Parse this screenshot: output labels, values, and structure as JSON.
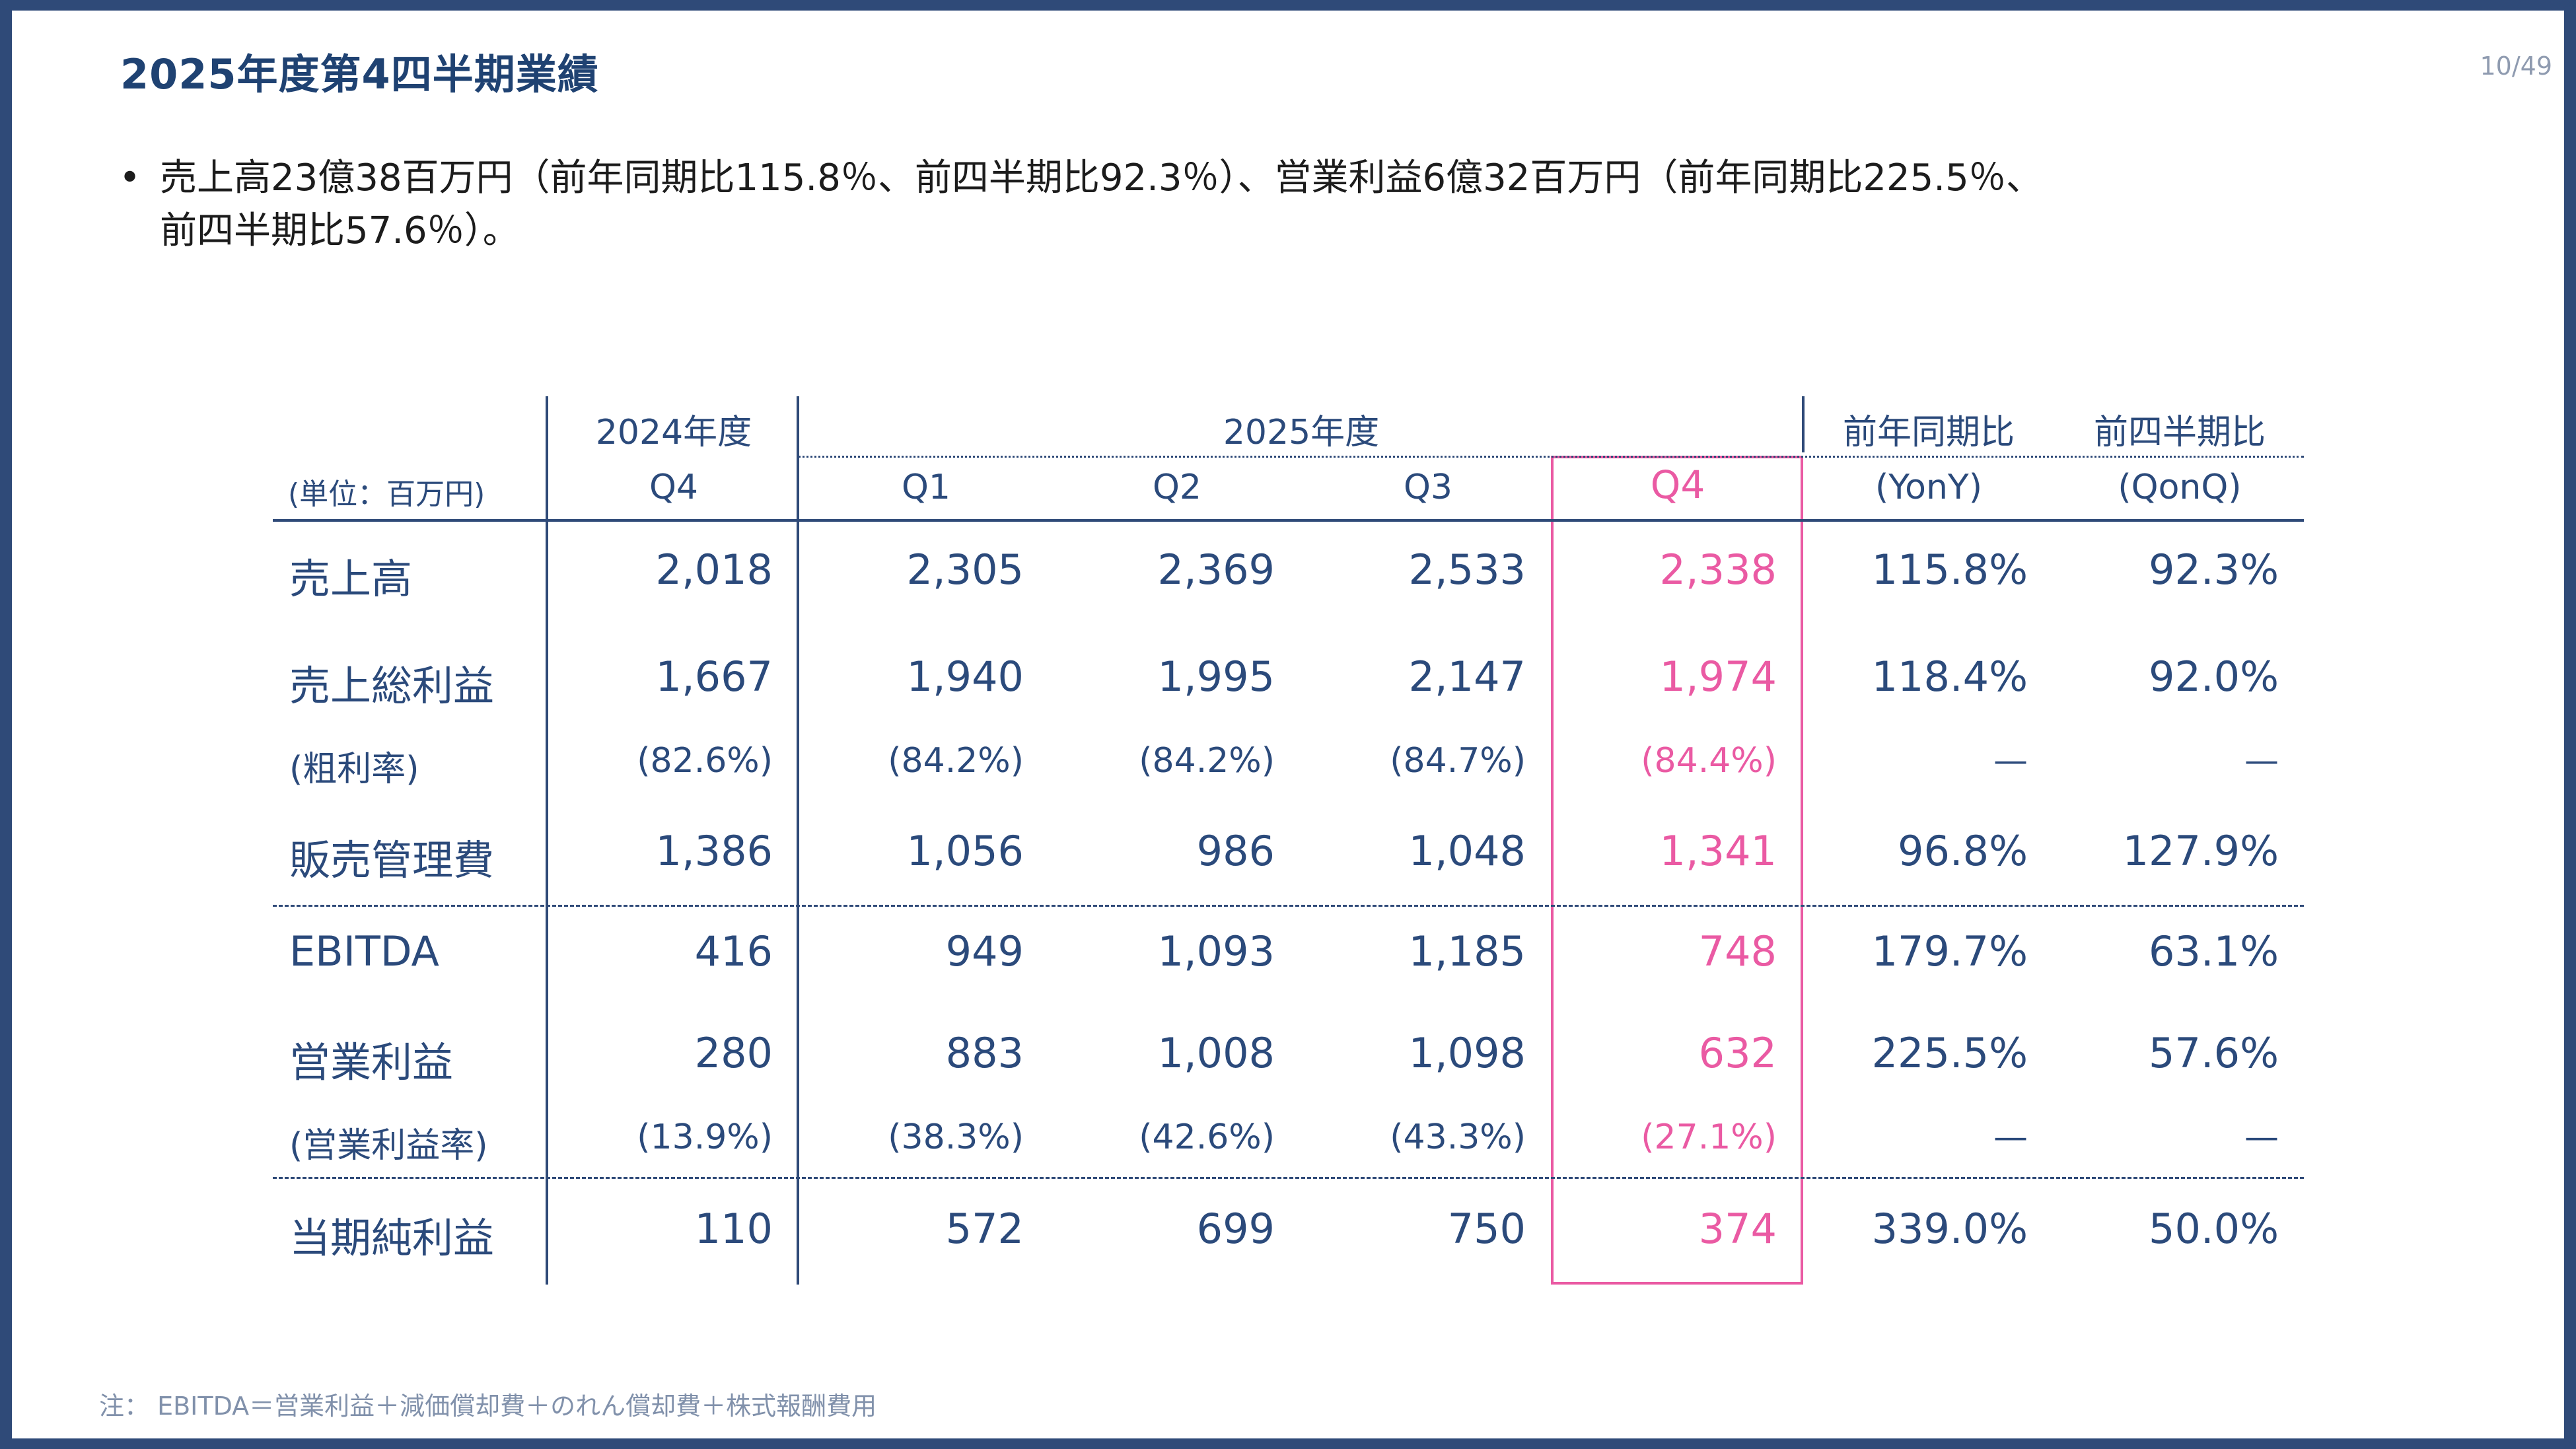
{
  "slide": {
    "title": "2025年度第4四半期業績",
    "page_number": "10/49",
    "bullet_line1": "売上高23億38百万円（前年同期比115.8％、前四半期比92.3％）、営業利益6億32百万円（前年同期比225.5％、",
    "bullet_line2": "前四半期比57.6％）。",
    "footnote": "注： EBITDA＝営業利益＋減価償却費＋のれん償却費＋株式報酬費用"
  },
  "table": {
    "unit_label": "(単位：百万円)",
    "group_headers": {
      "fy2024": "2024年度",
      "fy2025": "2025年度",
      "yoy": "前年同期比",
      "qoq": "前四半期比"
    },
    "column_headers": {
      "q4_2024": "Q4",
      "q1": "Q1",
      "q2": "Q2",
      "q3": "Q3",
      "q4": "Q4",
      "yoy": "(YonY)",
      "qoq": "(QonQ)"
    },
    "rows": [
      {
        "label": "売上高",
        "values": [
          "2,018",
          "2,305",
          "2,369",
          "2,533",
          "2,338",
          "115.8%",
          "92.3%"
        ]
      },
      {
        "label": "売上総利益",
        "values": [
          "1,667",
          "1,940",
          "1,995",
          "2,147",
          "1,974",
          "118.4%",
          "92.0%"
        ]
      },
      {
        "label": "(粗利率)",
        "values": [
          "(82.6%)",
          "(84.2%)",
          "(84.2%)",
          "(84.7%)",
          "(84.4%)",
          "—",
          "—"
        ]
      },
      {
        "label": "販売管理費",
        "values": [
          "1,386",
          "1,056",
          "986",
          "1,048",
          "1,341",
          "96.8%",
          "127.9%"
        ]
      },
      {
        "label": "EBITDA",
        "values": [
          "416",
          "949",
          "1,093",
          "1,185",
          "748",
          "179.7%",
          "63.1%"
        ]
      },
      {
        "label": "営業利益",
        "values": [
          "280",
          "883",
          "1,008",
          "1,098",
          "632",
          "225.5%",
          "57.6%"
        ]
      },
      {
        "label": "(営業利益率)",
        "values": [
          "(13.9%)",
          "(38.3%)",
          "(42.6%)",
          "(43.3%)",
          "(27.1%)",
          "—",
          "—"
        ]
      },
      {
        "label": "当期純利益",
        "values": [
          "110",
          "572",
          "699",
          "750",
          "374",
          "339.0%",
          "50.0%"
        ]
      }
    ],
    "colors": {
      "text": "#2b4a7b",
      "highlight": "#ea5aa3",
      "frame": "#2f4a78"
    }
  }
}
